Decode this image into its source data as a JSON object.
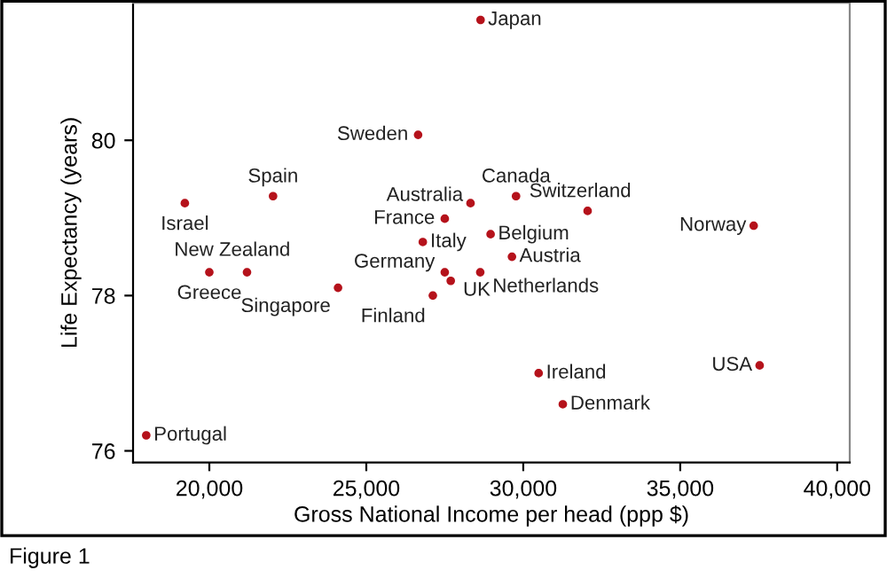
{
  "chart_data": {
    "type": "scatter",
    "xlabel": "Gross National Income per head (ppp $)",
    "ylabel": "Life Expectancy (years)",
    "xlim": [
      17570,
      40400
    ],
    "ylim": [
      75.85,
      81.77
    ],
    "xticks": [
      {
        "value": 20000,
        "label": "20,000"
      },
      {
        "value": 25000,
        "label": "25,000"
      },
      {
        "value": 30000,
        "label": "30,000"
      },
      {
        "value": 35000,
        "label": "35,000"
      },
      {
        "value": 40000,
        "label": "40,000"
      }
    ],
    "yticks": [
      76,
      78,
      80
    ],
    "grid": false,
    "marker": "circle",
    "series": [
      {
        "color": "#b5121b",
        "x": [
          28640,
          26650,
          19220,
          22030,
          28320,
          29770,
          32050,
          37340,
          27500,
          26800,
          28960,
          29640,
          27500,
          27690,
          28630,
          27120,
          20000,
          21200,
          24100,
          30490,
          31260,
          37530,
          17990
        ],
        "values": [
          81.55,
          80.07,
          79.19,
          79.28,
          79.19,
          79.28,
          79.09,
          78.9,
          78.99,
          78.69,
          78.79,
          78.5,
          78.3,
          78.19,
          78.3,
          78.0,
          78.3,
          78.3,
          78.1,
          77.0,
          76.6,
          77.1,
          76.2
        ]
      }
    ],
    "annotations": [
      {
        "text": "Japan",
        "x": 28640,
        "y": 81.55
      },
      {
        "text": "Sweden",
        "x": 26650,
        "y": 80.07
      },
      {
        "text": "Israel",
        "x": 19220,
        "y": 79.19
      },
      {
        "text": "Spain",
        "x": 22030,
        "y": 79.28
      },
      {
        "text": "Australia",
        "x": 28320,
        "y": 79.19
      },
      {
        "text": "Canada",
        "x": 29770,
        "y": 79.28
      },
      {
        "text": "Switzerland",
        "x": 32050,
        "y": 79.09
      },
      {
        "text": "Norway",
        "x": 37340,
        "y": 78.9
      },
      {
        "text": "France",
        "x": 27500,
        "y": 78.99
      },
      {
        "text": "Italy",
        "x": 26800,
        "y": 78.69
      },
      {
        "text": "Belgium",
        "x": 28960,
        "y": 78.79
      },
      {
        "text": "Austria",
        "x": 29640,
        "y": 78.5
      },
      {
        "text": "Germany",
        "x": 27500,
        "y": 78.3
      },
      {
        "text": "UK",
        "x": 27690,
        "y": 78.19
      },
      {
        "text": "Netherlands",
        "x": 28630,
        "y": 78.3
      },
      {
        "text": "Finland",
        "x": 27120,
        "y": 78.0
      },
      {
        "text": "Greece",
        "x": 20000,
        "y": 78.3
      },
      {
        "text": "New Zealand",
        "x": 21200,
        "y": 78.3
      },
      {
        "text": "Singapore",
        "x": 24100,
        "y": 78.1
      },
      {
        "text": "Ireland",
        "x": 30490,
        "y": 77.0
      },
      {
        "text": "Denmark",
        "x": 31260,
        "y": 76.6
      },
      {
        "text": "USA",
        "x": 37530,
        "y": 77.1
      },
      {
        "text": "Portugal",
        "x": 17990,
        "y": 76.2
      },
      "Figure 1"
    ]
  }
}
